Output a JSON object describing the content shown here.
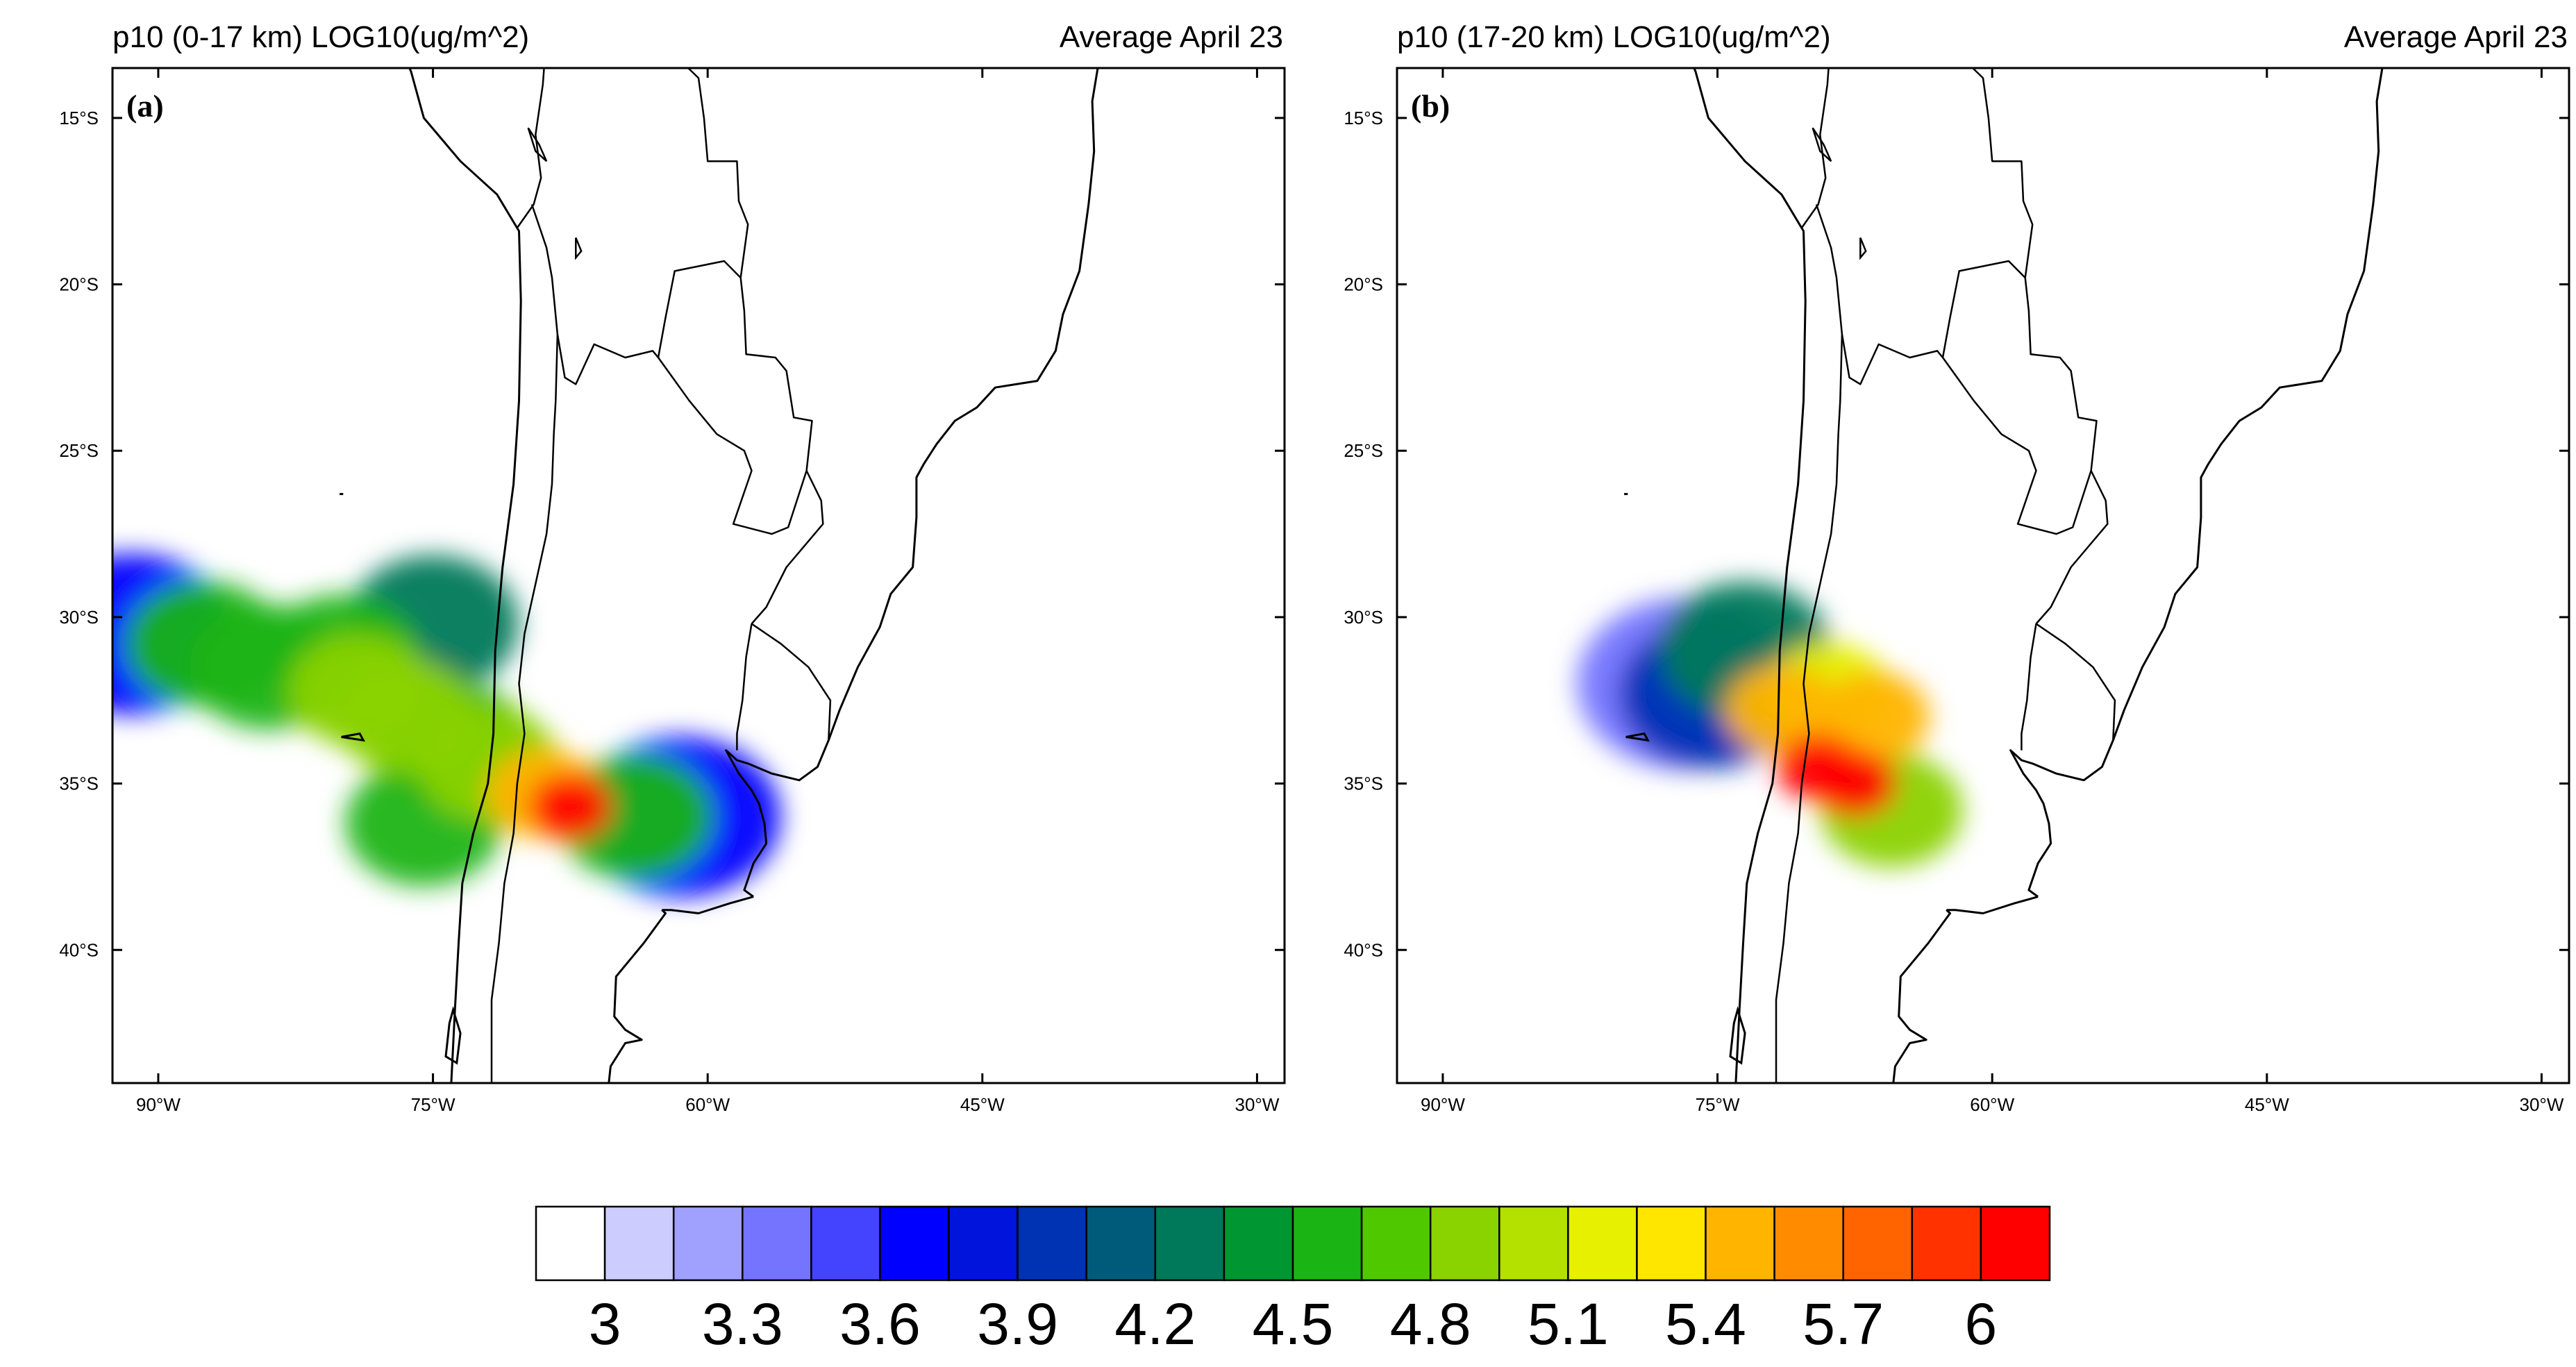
{
  "panels": [
    {
      "title_left": "p10 (0-17 km) LOG10(ug/m^2)",
      "title_right": "Average April 23",
      "panel_label": "(a)",
      "plumes": [
        {
          "lon": -91.5,
          "lat": -30.5,
          "level": 3.6
        },
        {
          "lon": -87.5,
          "lat": -30.8,
          "level": 4.5
        },
        {
          "lon": -84.0,
          "lat": -31.5,
          "level": 4.5
        },
        {
          "lon": -80.0,
          "lat": -31.2,
          "level": 4.5
        },
        {
          "lon": -79.0,
          "lat": -32.2,
          "level": 4.8
        },
        {
          "lon": -76.5,
          "lat": -33.0,
          "level": 4.8
        },
        {
          "lon": -75.0,
          "lat": -30.2,
          "level": 4.2
        },
        {
          "lon": -74.0,
          "lat": -33.8,
          "level": 4.5
        },
        {
          "lon": -72.0,
          "lat": -34.4,
          "level": 4.8
        },
        {
          "lon": -69.0,
          "lat": -35.3,
          "level": 5.4
        },
        {
          "lon": -67.5,
          "lat": -35.7,
          "level": 6.0
        },
        {
          "lon": -64.0,
          "lat": -36.0,
          "level": 4.5
        },
        {
          "lon": -61.5,
          "lat": -36.0,
          "level": 3.6
        },
        {
          "lon": -75.5,
          "lat": -36.2,
          "level": 4.5
        }
      ]
    },
    {
      "title_left": "p10 (17-20 km) LOG10(ug/m^2)",
      "title_right": "Average April 23",
      "panel_label": "(b)",
      "plumes": [
        {
          "lon": -73.5,
          "lat": -31.0,
          "level": 4.2
        },
        {
          "lon": -71.5,
          "lat": -32.8,
          "level": 5.4
        },
        {
          "lon": -69.0,
          "lat": -32.3,
          "level": 5.1
        },
        {
          "lon": -66.5,
          "lat": -33.0,
          "level": 5.4
        },
        {
          "lon": -69.5,
          "lat": -34.5,
          "level": 6.0
        },
        {
          "lon": -67.5,
          "lat": -35.0,
          "level": 6.0
        },
        {
          "lon": -65.5,
          "lat": -35.8,
          "level": 4.8
        },
        {
          "lon": -76.8,
          "lat": -32.0,
          "level": 3.3
        },
        {
          "lon": -75.3,
          "lat": -32.3,
          "level": 3.9
        }
      ]
    }
  ],
  "map_extent": {
    "lon_min": -92.5,
    "lon_max": -28.5,
    "lat_min": -44.0,
    "lat_max": -13.5
  },
  "lat_ticks": [
    {
      "value": -15,
      "label": "15°S"
    },
    {
      "value": -20,
      "label": "20°S"
    },
    {
      "value": -25,
      "label": "25°S"
    },
    {
      "value": -30,
      "label": "30°S"
    },
    {
      "value": -35,
      "label": "35°S"
    },
    {
      "value": -40,
      "label": "40°S"
    }
  ],
  "lon_ticks": [
    {
      "value": -90,
      "label": "90°W"
    },
    {
      "value": -75,
      "label": "75°W"
    },
    {
      "value": -60,
      "label": "60°W"
    },
    {
      "value": -45,
      "label": "45°W"
    },
    {
      "value": -30,
      "label": "30°W"
    }
  ],
  "colorbar": {
    "colors": [
      "#ffffff",
      "#ccccff",
      "#a0a0ff",
      "#7474ff",
      "#4444ff",
      "#0000ff",
      "#0014dc",
      "#0032b4",
      "#005a7a",
      "#00785a",
      "#009632",
      "#1ab414",
      "#50c800",
      "#8ad200",
      "#b4e100",
      "#e6f000",
      "#ffe600",
      "#ffb400",
      "#ff8c00",
      "#ff6400",
      "#ff3200",
      "#ff0000"
    ],
    "labels": [
      "3",
      "3.3",
      "3.6",
      "3.9",
      "4.2",
      "4.5",
      "4.8",
      "5.1",
      "5.4",
      "5.7",
      "6"
    ]
  },
  "coastlines": [
    [
      [
        -81.0,
        -6.0
      ],
      [
        -80.2,
        -8.0
      ],
      [
        -79.0,
        -9.5
      ],
      [
        -77.5,
        -12.0
      ],
      [
        -76.2,
        -13.6
      ],
      [
        -75.5,
        -15.0
      ],
      [
        -73.5,
        -16.3
      ],
      [
        -71.5,
        -17.3
      ],
      [
        -70.3,
        -18.4
      ],
      [
        -70.2,
        -20.5
      ],
      [
        -70.3,
        -23.5
      ],
      [
        -70.6,
        -26.0
      ],
      [
        -71.2,
        -28.5
      ],
      [
        -71.6,
        -31.0
      ],
      [
        -71.7,
        -33.5
      ],
      [
        -72.0,
        -35.0
      ],
      [
        -72.8,
        -36.5
      ],
      [
        -73.4,
        -38.0
      ],
      [
        -73.6,
        -39.8
      ],
      [
        -73.8,
        -41.8
      ],
      [
        -74.0,
        -44.0
      ]
    ],
    [
      [
        -57.5,
        -38.4
      ],
      [
        -58.0,
        -38.2
      ],
      [
        -57.5,
        -37.4
      ],
      [
        -56.8,
        -36.8
      ],
      [
        -56.9,
        -36.2
      ],
      [
        -57.2,
        -35.6
      ],
      [
        -57.6,
        -35.2
      ],
      [
        -58.3,
        -34.7
      ],
      [
        -59.0,
        -34.0
      ],
      [
        -58.4,
        -34.3
      ],
      [
        -57.8,
        -34.4
      ],
      [
        -56.5,
        -34.7
      ],
      [
        -55.0,
        -34.9
      ],
      [
        -54.0,
        -34.5
      ],
      [
        -53.4,
        -33.7
      ],
      [
        -52.8,
        -32.8
      ],
      [
        -51.8,
        -31.5
      ],
      [
        -50.6,
        -30.3
      ],
      [
        -50.0,
        -29.3
      ],
      [
        -48.8,
        -28.5
      ],
      [
        -48.6,
        -27.0
      ],
      [
        -48.6,
        -25.8
      ],
      [
        -48.2,
        -25.4
      ],
      [
        -47.5,
        -24.8
      ],
      [
        -46.5,
        -24.1
      ],
      [
        -45.3,
        -23.7
      ],
      [
        -44.3,
        -23.1
      ],
      [
        -42.0,
        -22.9
      ],
      [
        -41.0,
        -22.0
      ],
      [
        -40.6,
        -20.9
      ],
      [
        -39.7,
        -19.6
      ],
      [
        -39.2,
        -17.6
      ],
      [
        -38.9,
        -16.0
      ],
      [
        -39.0,
        -14.5
      ],
      [
        -38.7,
        -13.5
      ],
      [
        -38.0,
        -12.8
      ],
      [
        -37.0,
        -11.0
      ],
      [
        -35.8,
        -9.7
      ],
      [
        -35.0,
        -8.0
      ]
    ],
    [
      [
        -62.5,
        -38.8
      ],
      [
        -62.3,
        -38.9
      ],
      [
        -63.5,
        -39.8
      ],
      [
        -65.0,
        -40.8
      ],
      [
        -65.1,
        -42.0
      ],
      [
        -64.5,
        -42.4
      ],
      [
        -63.6,
        -42.7
      ],
      [
        -64.5,
        -42.8
      ],
      [
        -65.3,
        -43.5
      ],
      [
        -65.4,
        -44.0
      ]
    ],
    [
      [
        -57.5,
        -38.4
      ],
      [
        -58.8,
        -38.6
      ],
      [
        -60.5,
        -38.9
      ],
      [
        -62.0,
        -38.8
      ],
      [
        -62.5,
        -38.8
      ]
    ]
  ],
  "borders": [
    [
      [
        -70.4,
        -18.3
      ],
      [
        -69.5,
        -17.6
      ],
      [
        -69.1,
        -16.8
      ],
      [
        -69.4,
        -15.5
      ],
      [
        -69.0,
        -14.0
      ],
      [
        -68.8,
        -12.5
      ],
      [
        -69.6,
        -11.0
      ]
    ],
    [
      [
        -69.6,
        -11.0
      ],
      [
        -68.3,
        -11.0
      ],
      [
        -66.5,
        -9.9
      ],
      [
        -65.3,
        -9.7
      ],
      [
        -65.0,
        -11.5
      ],
      [
        -63.5,
        -12.5
      ],
      [
        -62.0,
        -13.0
      ],
      [
        -60.5,
        -13.8
      ],
      [
        -60.2,
        -15.0
      ],
      [
        -60.0,
        -16.3
      ],
      [
        -58.4,
        -16.3
      ],
      [
        -58.3,
        -17.5
      ],
      [
        -57.8,
        -18.2
      ],
      [
        -58.2,
        -19.8
      ]
    ],
    [
      [
        -58.2,
        -19.8
      ],
      [
        -59.1,
        -19.3
      ],
      [
        -61.8,
        -19.6
      ],
      [
        -62.3,
        -21.0
      ],
      [
        -62.7,
        -22.2
      ]
    ],
    [
      [
        -69.6,
        -17.6
      ],
      [
        -68.8,
        -18.9
      ],
      [
        -68.5,
        -19.8
      ],
      [
        -68.2,
        -21.5
      ],
      [
        -67.8,
        -22.8
      ],
      [
        -67.2,
        -23.0
      ],
      [
        -66.2,
        -21.8
      ],
      [
        -64.5,
        -22.2
      ],
      [
        -63.0,
        -22.0
      ],
      [
        -62.7,
        -22.2
      ]
    ],
    [
      [
        -68.2,
        -21.5
      ],
      [
        -68.3,
        -23.5
      ],
      [
        -68.4,
        -24.5
      ],
      [
        -68.5,
        -26.0
      ],
      [
        -68.8,
        -27.5
      ],
      [
        -69.4,
        -29.0
      ],
      [
        -70.0,
        -30.5
      ],
      [
        -70.3,
        -32.0
      ],
      [
        -70.0,
        -33.5
      ],
      [
        -70.4,
        -35.0
      ],
      [
        -70.6,
        -36.5
      ],
      [
        -71.1,
        -38.0
      ],
      [
        -71.4,
        -39.8
      ],
      [
        -71.8,
        -41.5
      ],
      [
        -71.8,
        -44.0
      ]
    ],
    [
      [
        -62.7,
        -22.2
      ],
      [
        -61.0,
        -23.5
      ],
      [
        -59.5,
        -24.5
      ],
      [
        -58.0,
        -25.0
      ],
      [
        -57.6,
        -25.6
      ],
      [
        -58.6,
        -27.2
      ],
      [
        -56.5,
        -27.5
      ],
      [
        -55.6,
        -27.3
      ],
      [
        -54.6,
        -25.6
      ]
    ],
    [
      [
        -58.2,
        -19.8
      ],
      [
        -58.0,
        -20.8
      ],
      [
        -57.9,
        -22.1
      ],
      [
        -56.3,
        -22.2
      ],
      [
        -55.7,
        -22.6
      ],
      [
        -55.3,
        -24.0
      ],
      [
        -54.3,
        -24.1
      ],
      [
        -54.6,
        -25.6
      ]
    ],
    [
      [
        -54.6,
        -25.6
      ],
      [
        -53.8,
        -26.5
      ],
      [
        -53.7,
        -27.2
      ],
      [
        -55.7,
        -28.5
      ],
      [
        -56.8,
        -29.7
      ],
      [
        -57.6,
        -30.2
      ]
    ],
    [
      [
        -57.6,
        -30.2
      ],
      [
        -57.9,
        -31.2
      ],
      [
        -58.1,
        -32.5
      ],
      [
        -58.4,
        -33.5
      ],
      [
        -58.4,
        -34.0
      ]
    ],
    [
      [
        -57.6,
        -30.2
      ],
      [
        -56.0,
        -30.8
      ],
      [
        -54.5,
        -31.5
      ],
      [
        -53.3,
        -32.5
      ],
      [
        -53.4,
        -33.7
      ]
    ]
  ],
  "lakes": [
    [
      [
        -69.8,
        -15.3
      ],
      [
        -69.2,
        -15.8
      ],
      [
        -68.8,
        -16.3
      ],
      [
        -69.4,
        -16.0
      ],
      [
        -69.8,
        -15.3
      ]
    ],
    [
      [
        -67.2,
        -18.6
      ],
      [
        -66.9,
        -19.0
      ],
      [
        -67.2,
        -19.2
      ],
      [
        -67.2,
        -18.6
      ]
    ]
  ],
  "islands": [
    [
      [
        -80.0,
        -33.6
      ],
      [
        -78.8,
        -33.7
      ],
      [
        -79.0,
        -33.5
      ],
      [
        -80.0,
        -33.6
      ]
    ],
    [
      [
        -73.9,
        -41.8
      ],
      [
        -73.5,
        -42.5
      ],
      [
        -73.7,
        -43.4
      ],
      [
        -74.3,
        -43.2
      ],
      [
        -74.1,
        -42.2
      ],
      [
        -73.9,
        -41.8
      ]
    ],
    [
      [
        -80.1,
        -26.3
      ],
      [
        -79.9,
        -26.3
      ]
    ]
  ]
}
